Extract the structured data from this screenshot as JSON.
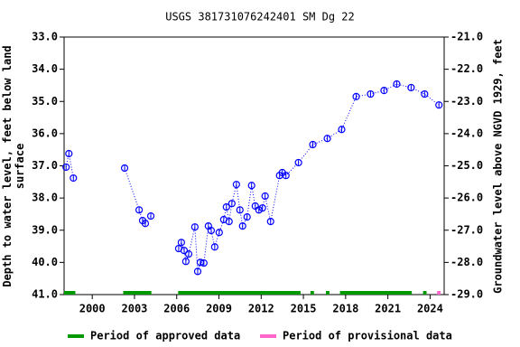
{
  "chart_data": {
    "type": "line",
    "title": "USGS 381731076242401 SM Dg  22",
    "y_label": "Depth to water level, feet below land surface",
    "y2_label": "Groundwater level above NGVD 1929, feet",
    "xlim": [
      1998,
      2025
    ],
    "xticks": [
      2000,
      2003,
      2006,
      2009,
      2012,
      2015,
      2018,
      2021,
      2024
    ],
    "ylim": [
      33,
      41
    ],
    "yticks": [
      {
        "value": 33,
        "label": "33.0"
      },
      {
        "value": 34,
        "label": "34.0"
      },
      {
        "value": 35,
        "label": "35.0"
      },
      {
        "value": 36,
        "label": "36.0"
      },
      {
        "value": 37,
        "label": "37.0"
      },
      {
        "value": 38,
        "label": "38.0"
      },
      {
        "value": 39,
        "label": "39.0"
      },
      {
        "value": 40,
        "label": "40.0"
      },
      {
        "value": 41,
        "label": "41.0"
      }
    ],
    "y_inverted": true,
    "y2lim": [
      -21,
      -29
    ],
    "y2ticks": [
      {
        "value": -21,
        "label": "-21.0"
      },
      {
        "value": -22,
        "label": "-22.0"
      },
      {
        "value": -23,
        "label": "-23.0"
      },
      {
        "value": -24,
        "label": "-24.0"
      },
      {
        "value": -25,
        "label": "-25.0"
      },
      {
        "value": -26,
        "label": "-26.0"
      },
      {
        "value": -27,
        "label": "-27.0"
      },
      {
        "value": -28,
        "label": "-28.0"
      },
      {
        "value": -29,
        "label": "-29.0"
      }
    ],
    "series": [
      {
        "color": "#0000ff",
        "x": [
          1998.14,
          1998.34,
          1998.66,
          null,
          2002.3,
          2003.33,
          2003.58,
          2003.77,
          2004.16,
          null,
          2006.14,
          2006.33,
          2006.53,
          2006.65,
          2006.85,
          2007.29,
          2007.49,
          2007.68,
          2007.93,
          2008.25,
          2008.45,
          2008.7,
          2009.02,
          2009.34,
          2009.53,
          2009.72,
          2009.92,
          2010.24,
          2010.49,
          2010.68,
          2011.0,
          2011.32,
          2011.58,
          2011.84,
          2012.09,
          2012.28,
          2012.67,
          2013.31,
          2013.5,
          2013.76,
          2014.65,
          2015.67,
          2016.7,
          2017.72,
          2018.75,
          2019.77,
          2020.73,
          2021.63,
          2022.65,
          2023.61,
          2024.63
        ],
        "values": [
          37.04,
          36.62,
          37.38,
          null,
          37.07,
          38.37,
          38.7,
          38.79,
          38.56,
          null,
          39.57,
          39.38,
          39.63,
          39.97,
          39.74,
          38.9,
          40.28,
          40.0,
          40.02,
          38.87,
          39.01,
          39.52,
          39.07,
          38.67,
          38.28,
          38.73,
          38.17,
          37.58,
          38.37,
          38.87,
          38.59,
          37.61,
          38.25,
          38.37,
          38.31,
          37.94,
          38.73,
          37.3,
          37.21,
          37.3,
          36.9,
          36.34,
          36.15,
          35.87,
          34.85,
          34.77,
          34.66,
          34.46,
          34.57,
          34.77,
          35.11
        ]
      }
    ],
    "periods": [
      {
        "name": "Period of approved data",
        "color": "#009900",
        "ranges": [
          [
            1998.0,
            1998.8
          ],
          [
            2002.2,
            2004.2
          ],
          [
            2006.1,
            2014.8
          ],
          [
            2015.5,
            2015.75
          ],
          [
            2016.6,
            2016.85
          ],
          [
            2017.6,
            2022.7
          ],
          [
            2023.5,
            2023.75
          ]
        ]
      },
      {
        "name": "Period of provisional data",
        "color": "#ff66cc",
        "ranges": [
          [
            2024.5,
            2024.75
          ]
        ]
      }
    ]
  }
}
